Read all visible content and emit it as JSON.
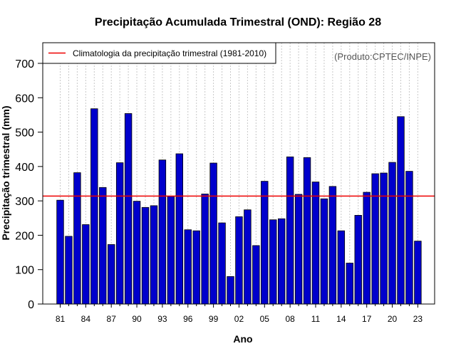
{
  "chart_data": {
    "type": "bar",
    "title": "Precipitação Acumulada Trimestral (OND): Região 28",
    "xlabel": "Ano",
    "ylabel": "Precipitação trimestral (mm)",
    "ylim": [
      0,
      760
    ],
    "yticks": [
      0,
      100,
      200,
      300,
      400,
      500,
      600,
      700
    ],
    "categories": [
      "81",
      "82",
      "83",
      "84",
      "85",
      "86",
      "87",
      "88",
      "89",
      "90",
      "91",
      "92",
      "93",
      "94",
      "95",
      "96",
      "97",
      "98",
      "99",
      "00",
      "01",
      "02",
      "03",
      "04",
      "05",
      "06",
      "07",
      "08",
      "09",
      "10",
      "11",
      "12",
      "13",
      "14",
      "15",
      "16",
      "17",
      "18",
      "19",
      "20",
      "21",
      "22",
      "23"
    ],
    "xtick_labels": [
      "81",
      "84",
      "87",
      "90",
      "93",
      "96",
      "99",
      "02",
      "05",
      "08",
      "11",
      "14",
      "17",
      "20",
      "23"
    ],
    "series": [
      {
        "name": "Precipitação acumulada trimestral",
        "color": "#0000cc",
        "values": [
          302,
          197,
          382,
          231,
          568,
          339,
          173,
          411,
          554,
          299,
          281,
          286,
          419,
          313,
          437,
          216,
          213,
          320,
          410,
          236,
          80,
          254,
          274,
          170,
          357,
          245,
          248,
          428,
          319,
          426,
          355,
          306,
          342,
          213,
          119,
          258,
          325,
          379,
          381,
          412,
          545,
          386,
          183
        ]
      }
    ],
    "reference_line": {
      "label": "Climatologia da precipitação trimestral (1981-2010)",
      "value": 314,
      "color": "#ee0000"
    },
    "legend_position": "top-left",
    "grid": "vertical dotted",
    "source_note": "(Produto:CPTEC/INPE)"
  }
}
